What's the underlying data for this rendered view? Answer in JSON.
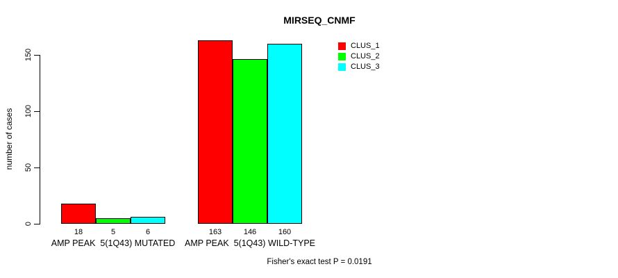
{
  "chart_data": {
    "type": "bar",
    "title": "MIRSEQ_CNMF",
    "ylabel": "number of cases",
    "xlabel": "",
    "ylim": [
      0,
      165
    ],
    "yticks": [
      0,
      50,
      100,
      150
    ],
    "grid": false,
    "legend_position": "top-right",
    "categories": [
      "AMP PEAK  5(1Q43) MUTATED",
      "AMP PEAK  5(1Q43) WILD-TYPE"
    ],
    "series": [
      {
        "name": "CLUS_1",
        "color": "#ff0000",
        "values": [
          18,
          163
        ]
      },
      {
        "name": "CLUS_2",
        "color": "#00ff00",
        "values": [
          5,
          146
        ]
      },
      {
        "name": "CLUS_3",
        "color": "#00ffff",
        "values": [
          6,
          160
        ]
      }
    ],
    "bar_value_labels": [
      [
        18,
        5,
        6
      ],
      [
        163,
        146,
        160
      ]
    ],
    "annotation": "Fisher's exact test P = 0.0191"
  }
}
